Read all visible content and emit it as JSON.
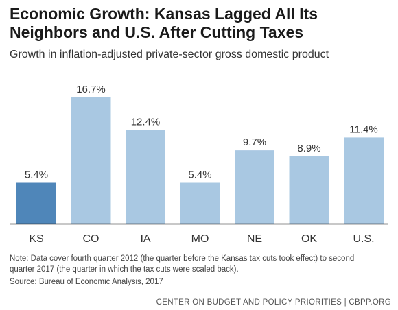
{
  "chart_data": {
    "type": "bar",
    "title": "Economic Growth: Kansas Lagged All Its Neighbors and U.S. After Cutting Taxes",
    "subtitle": "Growth in inflation-adjusted private-sector gross domestic product",
    "categories": [
      "KS",
      "CO",
      "IA",
      "MO",
      "NE",
      "OK",
      "U.S."
    ],
    "values": [
      5.4,
      16.7,
      12.4,
      5.4,
      9.7,
      8.9,
      11.4
    ],
    "data_labels": [
      "5.4%",
      "16.7%",
      "12.4%",
      "5.4%",
      "9.7%",
      "8.9%",
      "11.4%"
    ],
    "highlight_category": "KS",
    "colors": {
      "highlight": "#4f86b9",
      "default": "#a9c8e2",
      "axis": "#222222"
    },
    "ylim": [
      0,
      16.7
    ],
    "grid": false,
    "xlabel": "",
    "ylabel": ""
  },
  "note": "Note: Data cover fourth quarter 2012 (the quarter before the Kansas tax cuts took effect) to second quarter 2017 (the quarter in which the tax cuts were scaled back).",
  "source": "Source: Bureau of Economic Analysis, 2017",
  "footer": "CENTER ON BUDGET AND POLICY PRIORITIES | CBPP.ORG"
}
